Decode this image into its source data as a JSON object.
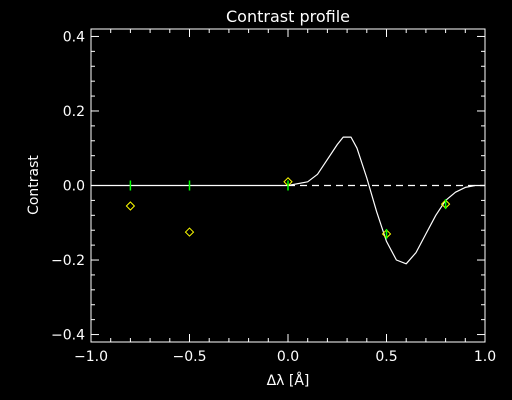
{
  "chart_data": {
    "type": "line",
    "title": "Contrast profile",
    "xlabel": "Δλ [Å]",
    "ylabel": "Contrast",
    "xlim": [
      -1.0,
      1.0
    ],
    "ylim": [
      -0.42,
      0.42
    ],
    "x_ticks": [
      -1.0,
      -0.5,
      0.0,
      0.5,
      1.0
    ],
    "x_tick_labels": [
      "−1.0",
      "−0.5",
      "0.0",
      "0.5",
      "1.0"
    ],
    "y_ticks": [
      -0.4,
      -0.2,
      0.0,
      0.2,
      0.4
    ],
    "y_tick_labels": [
      "−0.4",
      "−0.2",
      "0.0",
      "0.2",
      "0.4"
    ],
    "grid": false,
    "colors": {
      "background": "#000000",
      "axes": "#ffffff",
      "curve": "#ffffff",
      "diamond_points": "#ffff00",
      "green_marks": "#00ff00"
    },
    "series": [
      {
        "style": "solid-line",
        "x": [
          -1.0,
          -0.8,
          -0.5,
          0.0,
          0.1,
          0.15,
          0.2,
          0.25,
          0.28,
          0.32,
          0.35,
          0.4,
          0.45,
          0.5,
          0.55,
          0.6,
          0.65,
          0.7,
          0.75,
          0.8,
          0.85,
          0.9,
          0.95,
          1.0
        ],
        "y": [
          0.0,
          0.0,
          0.0,
          0.0,
          0.01,
          0.03,
          0.07,
          0.11,
          0.13,
          0.13,
          0.1,
          0.02,
          -0.07,
          -0.15,
          -0.2,
          -0.21,
          -0.18,
          -0.13,
          -0.08,
          -0.04,
          -0.018,
          -0.005,
          0.0,
          0.0
        ]
      },
      {
        "style": "dashed-line",
        "x": [
          0.0,
          1.0
        ],
        "y": [
          0.0,
          0.0
        ]
      },
      {
        "style": "diamond-markers",
        "x": [
          -0.8,
          -0.5,
          0.0,
          0.5,
          0.8
        ],
        "y": [
          -0.055,
          -0.125,
          0.01,
          -0.13,
          -0.05
        ]
      },
      {
        "style": "green-tick-marks",
        "x": [
          -0.8,
          -0.5,
          0.0,
          0.5,
          0.8
        ],
        "y": [
          0.0,
          0.0,
          0.0,
          -0.13,
          -0.05
        ]
      }
    ]
  }
}
